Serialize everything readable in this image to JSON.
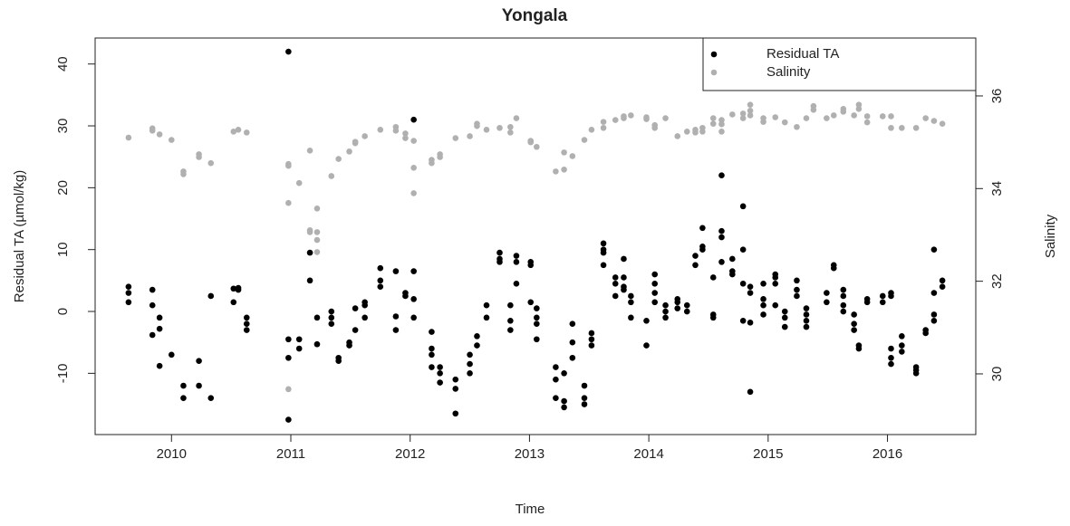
{
  "chart_data": {
    "type": "scatter",
    "title": "Yongala",
    "xlabel": "Time",
    "ylabel": "Residual TA (µmol/kg)",
    "y2label": "Salinity",
    "xlim": [
      2009.36,
      2016.74
    ],
    "xticks": [
      2010,
      2011,
      2012,
      2013,
      2014,
      2015,
      2016
    ],
    "ylim": [
      -19.9,
      44.2
    ],
    "yticks": [
      -10,
      0,
      10,
      20,
      30,
      40
    ],
    "y2lim": [
      28.69,
      37.25
    ],
    "y2ticks": [
      30,
      32,
      34,
      36
    ],
    "legend": "topright",
    "series": [
      {
        "name": "Residual TA",
        "color": "#000000",
        "x": [
          2009.64,
          2009.64,
          2009.64,
          2009.84,
          2009.84,
          2009.84,
          2009.9,
          2009.9,
          2009.9,
          2010.0,
          2010.1,
          2010.1,
          2010.23,
          2010.23,
          2010.33,
          2010.33,
          2010.52,
          2010.52,
          2010.56,
          2010.56,
          2010.63,
          2010.63,
          2010.63,
          2010.98,
          2010.98,
          2010.98,
          2010.98,
          2011.07,
          2011.07,
          2011.16,
          2011.16,
          2011.22,
          2011.22,
          2011.34,
          2011.34,
          2011.34,
          2011.4,
          2011.4,
          2011.49,
          2011.49,
          2011.54,
          2011.54,
          2011.62,
          2011.62,
          2011.62,
          2011.75,
          2011.75,
          2011.75,
          2011.88,
          2011.88,
          2011.88,
          2011.96,
          2011.96,
          2012.03,
          2012.03,
          2012.03,
          2012.03,
          2012.18,
          2012.18,
          2012.18,
          2012.18,
          2012.25,
          2012.25,
          2012.25,
          2012.38,
          2012.38,
          2012.38,
          2012.5,
          2012.5,
          2012.5,
          2012.56,
          2012.56,
          2012.64,
          2012.64,
          2012.75,
          2012.75,
          2012.75,
          2012.84,
          2012.84,
          2012.84,
          2012.89,
          2012.89,
          2012.89,
          2013.01,
          2013.01,
          2013.01,
          2013.06,
          2013.06,
          2013.06,
          2013.06,
          2013.22,
          2013.22,
          2013.22,
          2013.29,
          2013.29,
          2013.29,
          2013.36,
          2013.36,
          2013.36,
          2013.46,
          2013.46,
          2013.46,
          2013.52,
          2013.52,
          2013.52,
          2013.62,
          2013.62,
          2013.62,
          2013.62,
          2013.72,
          2013.72,
          2013.72,
          2013.79,
          2013.79,
          2013.79,
          2013.79,
          2013.85,
          2013.85,
          2013.85,
          2013.98,
          2013.98,
          2014.05,
          2014.05,
          2014.05,
          2014.05,
          2014.14,
          2014.14,
          2014.14,
          2014.24,
          2014.24,
          2014.24,
          2014.32,
          2014.32,
          2014.39,
          2014.39,
          2014.45,
          2014.45,
          2014.45,
          2014.54,
          2014.54,
          2014.54,
          2014.61,
          2014.61,
          2014.61,
          2014.61,
          2014.7,
          2014.7,
          2014.7,
          2014.79,
          2014.79,
          2014.79,
          2014.79,
          2014.85,
          2014.85,
          2014.85,
          2014.85,
          2014.96,
          2014.96,
          2014.96,
          2014.96,
          2015.06,
          2015.06,
          2015.06,
          2015.06,
          2015.14,
          2015.14,
          2015.14,
          2015.24,
          2015.24,
          2015.24,
          2015.32,
          2015.32,
          2015.32,
          2015.32,
          2015.49,
          2015.49,
          2015.55,
          2015.55,
          2015.63,
          2015.63,
          2015.63,
          2015.63,
          2015.72,
          2015.72,
          2015.72,
          2015.76,
          2015.76,
          2015.83,
          2015.83,
          2015.96,
          2015.96,
          2016.03,
          2016.03,
          2016.03,
          2016.03,
          2016.03,
          2016.12,
          2016.12,
          2016.12,
          2016.24,
          2016.24,
          2016.24,
          2016.32,
          2016.32,
          2016.39,
          2016.39,
          2016.39,
          2016.39,
          2016.46,
          2016.46
        ],
        "values": [
          4,
          3,
          1.5,
          3.5,
          1,
          -3.8,
          -1,
          -2.8,
          -8.8,
          -7,
          -12,
          -14,
          -8,
          -12,
          2.5,
          -14,
          3.7,
          1.5,
          3.8,
          3.5,
          -1,
          -2,
          -3,
          42,
          -4.5,
          -7.5,
          -17.5,
          -4.5,
          -6,
          9.5,
          5,
          -1,
          -5.3,
          0,
          -1,
          -2,
          -7.5,
          -8,
          -5,
          -5.5,
          0.5,
          -3,
          1.5,
          1,
          -1,
          7,
          5,
          4,
          6.5,
          -0.8,
          -3,
          3,
          2.5,
          31,
          6.5,
          2,
          -1,
          -3.3,
          -6,
          -7,
          -9,
          -9,
          -10,
          -11.5,
          -11,
          -12.5,
          -16.5,
          -7,
          -8.5,
          -10,
          -4,
          -5.5,
          1,
          -1,
          9.5,
          8.5,
          8,
          1,
          -1.5,
          -3,
          9,
          8,
          4.5,
          8,
          7.5,
          1.5,
          0.5,
          -1,
          -2,
          -4.5,
          -9,
          -11,
          -14,
          -10,
          -14.5,
          -15.5,
          -2,
          -5,
          -7.5,
          -12,
          -14,
          -15,
          -3.5,
          -4.5,
          -5.5,
          11,
          10,
          9.5,
          7.5,
          5.5,
          4.5,
          2.5,
          8.5,
          5.5,
          4,
          3.5,
          2.5,
          1.5,
          -1,
          -1.5,
          -5.5,
          6,
          4.5,
          3,
          1.5,
          1,
          0,
          -1,
          2,
          1.5,
          0.5,
          1,
          0,
          9,
          7.5,
          13.5,
          10.5,
          10,
          5.5,
          -0.5,
          -1,
          22,
          13,
          12,
          8,
          8.5,
          6.5,
          6,
          17,
          10,
          4.5,
          -1.5,
          4,
          3,
          -1.8,
          -13,
          4.5,
          2,
          1,
          -0.5,
          6,
          5.5,
          4.5,
          1,
          0,
          -1,
          -2.5,
          5,
          3.5,
          2.5,
          0.5,
          -0.5,
          -1.5,
          -2.5,
          3,
          1.5,
          7.5,
          7,
          3.5,
          2.5,
          1,
          0,
          -0.5,
          -2,
          -3,
          -5.5,
          -6,
          2,
          1.5,
          2.5,
          1.5,
          3,
          2.5,
          -6,
          -7.5,
          -8.5,
          -4,
          -5.5,
          -6.5,
          -9,
          -9.5,
          -10,
          -3,
          -3.5,
          10,
          3,
          -0.5,
          -1.5,
          5,
          4
        ]
      },
      {
        "name": "Salinity",
        "color": "#b0b0b0",
        "axis": "y2",
        "x": [
          2009.64,
          2009.84,
          2009.84,
          2009.9,
          2010.0,
          2010.1,
          2010.1,
          2010.23,
          2010.23,
          2010.33,
          2010.52,
          2010.56,
          2010.63,
          2010.98,
          2010.98,
          2010.98,
          2010.98,
          2011.07,
          2011.16,
          2011.16,
          2011.16,
          2011.22,
          2011.22,
          2011.22,
          2011.22,
          2011.34,
          2011.4,
          2011.49,
          2011.54,
          2011.54,
          2011.62,
          2011.75,
          2011.88,
          2011.88,
          2011.96,
          2011.96,
          2012.03,
          2012.03,
          2012.03,
          2012.18,
          2012.18,
          2012.25,
          2012.25,
          2012.38,
          2012.5,
          2012.56,
          2012.56,
          2012.64,
          2012.75,
          2012.84,
          2012.84,
          2012.89,
          2013.01,
          2013.01,
          2013.06,
          2013.22,
          2013.29,
          2013.29,
          2013.36,
          2013.46,
          2013.52,
          2013.62,
          2013.62,
          2013.72,
          2013.79,
          2013.79,
          2013.85,
          2013.98,
          2013.98,
          2014.05,
          2014.05,
          2014.14,
          2014.24,
          2014.32,
          2014.39,
          2014.39,
          2014.45,
          2014.45,
          2014.54,
          2014.54,
          2014.61,
          2014.61,
          2014.61,
          2014.7,
          2014.79,
          2014.79,
          2014.85,
          2014.85,
          2014.85,
          2014.96,
          2014.96,
          2015.06,
          2015.14,
          2015.24,
          2015.32,
          2015.38,
          2015.38,
          2015.49,
          2015.55,
          2015.63,
          2015.63,
          2015.72,
          2015.76,
          2015.76,
          2015.83,
          2015.83,
          2015.96,
          2016.03,
          2016.03,
          2016.12,
          2016.24,
          2016.32,
          2016.39,
          2016.46
        ],
        "values": [
          35.1,
          35.3,
          35.25,
          35.17,
          35.05,
          34.37,
          34.31,
          34.74,
          34.68,
          34.55,
          35.23,
          35.27,
          35.21,
          34.53,
          34.49,
          33.69,
          29.67,
          34.12,
          34.82,
          33.1,
          33.06,
          33.57,
          33.06,
          32.89,
          32.63,
          34.27,
          34.64,
          34.8,
          35.01,
          34.98,
          35.13,
          35.27,
          35.25,
          35.33,
          35.19,
          35.09,
          35.03,
          34.45,
          33.9,
          34.62,
          34.55,
          34.74,
          34.68,
          35.09,
          35.13,
          35.4,
          35.35,
          35.27,
          35.31,
          35.33,
          35.21,
          35.52,
          35.03,
          35.0,
          34.9,
          34.37,
          34.78,
          34.41,
          34.7,
          35.05,
          35.27,
          35.44,
          35.31,
          35.48,
          35.52,
          35.56,
          35.58,
          35.54,
          35.5,
          35.37,
          35.31,
          35.52,
          35.13,
          35.23,
          35.27,
          35.21,
          35.31,
          35.23,
          35.52,
          35.4,
          35.48,
          35.39,
          35.23,
          35.6,
          35.62,
          35.52,
          35.81,
          35.68,
          35.58,
          35.52,
          35.44,
          35.54,
          35.43,
          35.33,
          35.52,
          35.78,
          35.7,
          35.52,
          35.58,
          35.72,
          35.66,
          35.58,
          35.81,
          35.72,
          35.56,
          35.43,
          35.56,
          35.56,
          35.31,
          35.31,
          35.31,
          35.52,
          35.46,
          35.4
        ]
      }
    ]
  }
}
